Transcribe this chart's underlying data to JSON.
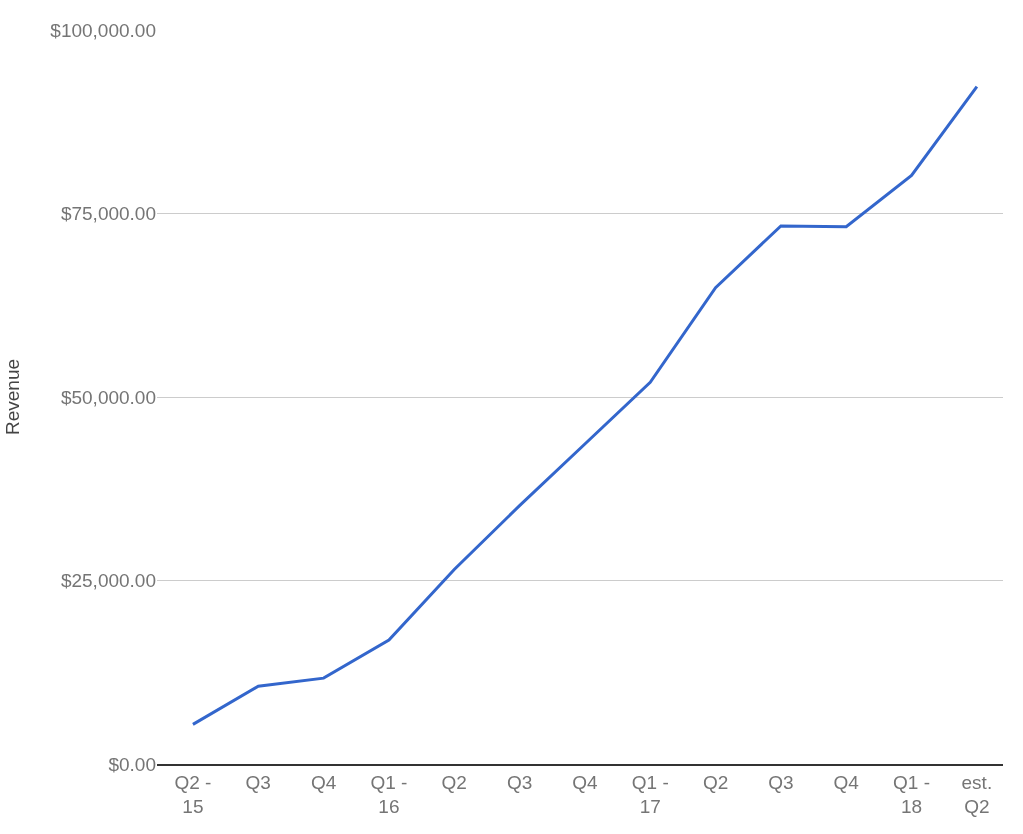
{
  "chart_data": {
    "type": "line",
    "ylabel": "Revenue",
    "categories": [
      "Q2 - 15",
      "Q3",
      "Q4",
      "Q1 - 16",
      "Q2",
      "Q3",
      "Q4",
      "Q1 - 17",
      "Q2",
      "Q3",
      "Q4",
      "Q1 - 18",
      "est. Q2"
    ],
    "series": [
      {
        "color": "#3366cc",
        "values": [
          5400,
          10600,
          11700,
          16900,
          26500,
          35200,
          43600,
          52000,
          64900,
          73300,
          73200,
          80200,
          92300
        ]
      }
    ],
    "ylim": [
      0,
      100000
    ],
    "yticks": [
      {
        "value": 0,
        "label": "$0.00"
      },
      {
        "value": 25000,
        "label": "$25,000.00"
      },
      {
        "value": 50000,
        "label": "$50,000.00"
      },
      {
        "value": 75000,
        "label": "$75,000.00"
      },
      {
        "value": 100000,
        "label": "$100,000.00"
      }
    ],
    "grid": "y",
    "marker": "none",
    "line_style": "solid"
  }
}
